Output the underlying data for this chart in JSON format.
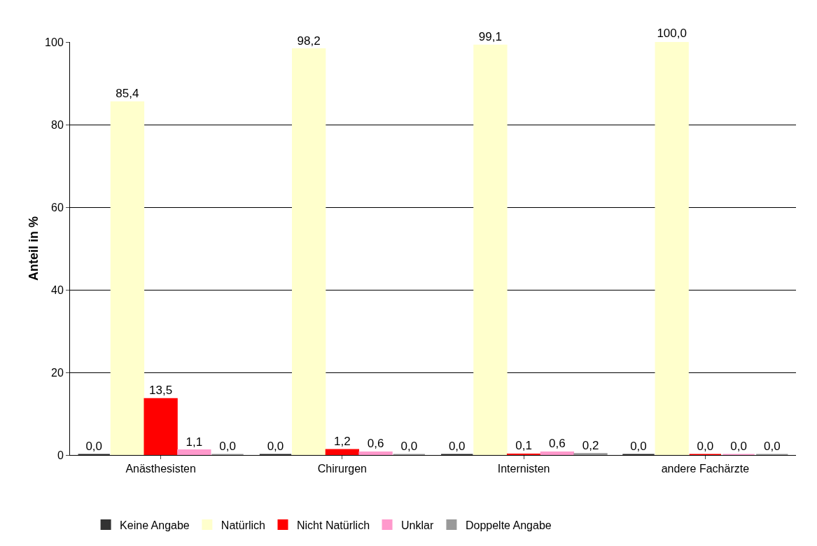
{
  "chart_data": {
    "type": "bar",
    "ylabel": "Anteil in %",
    "categories": [
      "Anästhesisten",
      "Chirurgen",
      "Internisten",
      "andere Fachärzte"
    ],
    "series": [
      {
        "name": "Keine Angabe",
        "color": "#333333",
        "values": [
          0.0,
          0.0,
          0.0,
          0.0
        ],
        "value_labels": [
          "0,0",
          "0,0",
          "0,0",
          "0,0"
        ]
      },
      {
        "name": "Natürlich",
        "color": "#ffffcc",
        "values": [
          85.4,
          98.2,
          99.1,
          100.0
        ],
        "value_labels": [
          "85,4",
          "98,2",
          "99,1",
          "100,0"
        ]
      },
      {
        "name": "Nicht Natürlich",
        "color": "#ff0000",
        "values": [
          13.5,
          1.2,
          0.1,
          0.0
        ],
        "value_labels": [
          "13,5",
          "1,2",
          "0,1",
          "0,0"
        ]
      },
      {
        "name": "Unklar",
        "color": "#ff99cc",
        "values": [
          1.1,
          0.6,
          0.6,
          0.0
        ],
        "value_labels": [
          "1,1",
          "0,6",
          "0,6",
          "0,0"
        ]
      },
      {
        "name": "Doppelte Angabe",
        "color": "#999999",
        "values": [
          0.0,
          0.0,
          0.2,
          0.0
        ],
        "value_labels": [
          "0,0",
          "0,0",
          "0,2",
          "0,0"
        ]
      }
    ],
    "ylim": [
      0,
      100
    ],
    "yticks": [
      0,
      20,
      40,
      60,
      80,
      100
    ],
    "grid": "y",
    "legend": "bottom left"
  }
}
